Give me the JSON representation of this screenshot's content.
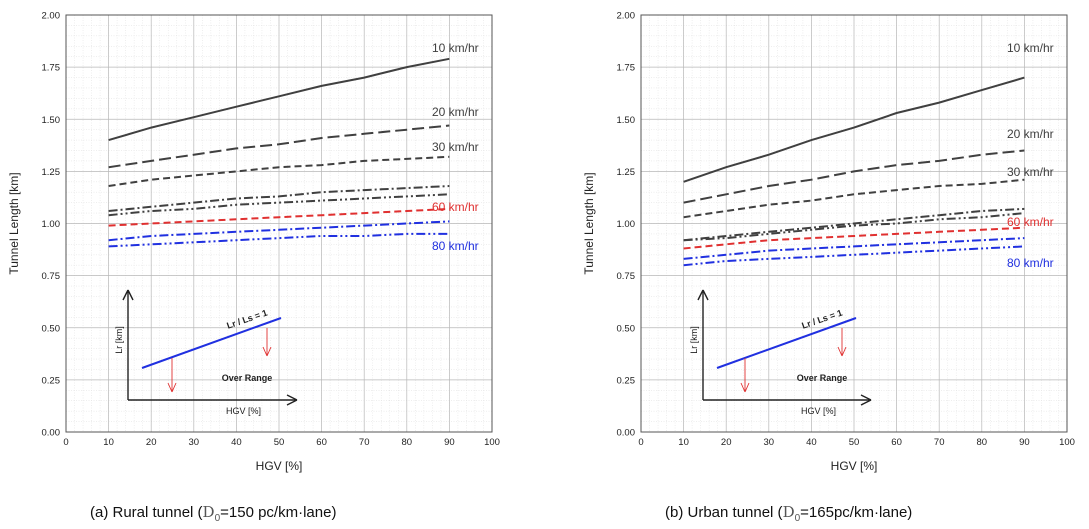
{
  "chart_data": [
    {
      "type": "line",
      "caption_prefix": "(a)  Rural  tunnel  (",
      "caption_symbol": "D",
      "caption_subscript": "0",
      "caption_suffix": "=150  pc/km·lane)",
      "xlabel": "HGV [%]",
      "ylabel": "Tunnel Length [km]",
      "xlim": [
        0,
        100
      ],
      "ylim": [
        0,
        2.0
      ],
      "x_ticks": [
        0,
        10,
        20,
        30,
        40,
        50,
        60,
        70,
        80,
        90,
        100
      ],
      "y_ticks": [
        0.0,
        0.25,
        0.5,
        0.75,
        1.0,
        1.25,
        1.5,
        1.75,
        2.0
      ],
      "grid": true,
      "x": [
        10,
        20,
        30,
        40,
        50,
        60,
        70,
        80,
        90
      ],
      "series": [
        {
          "name": "10 km/hr",
          "color": "#404040",
          "style": "solid",
          "values": [
            1.4,
            1.46,
            1.51,
            1.56,
            1.61,
            1.66,
            1.7,
            1.75,
            1.79
          ]
        },
        {
          "name": "20 km/hr",
          "color": "#404040",
          "style": "longdash",
          "values": [
            1.27,
            1.3,
            1.33,
            1.36,
            1.38,
            1.41,
            1.43,
            1.45,
            1.47
          ]
        },
        {
          "name": "30 km/hr",
          "color": "#404040",
          "style": "dash",
          "values": [
            1.18,
            1.21,
            1.23,
            1.25,
            1.27,
            1.28,
            1.3,
            1.31,
            1.32
          ]
        },
        {
          "color": "#404040",
          "style": "dashdot",
          "values": [
            1.06,
            1.08,
            1.1,
            1.12,
            1.13,
            1.15,
            1.16,
            1.17,
            1.18
          ]
        },
        {
          "color": "#404040",
          "style": "dashdotdot",
          "values": [
            1.04,
            1.06,
            1.07,
            1.09,
            1.1,
            1.11,
            1.12,
            1.13,
            1.14
          ]
        },
        {
          "name": "60 km/hr",
          "color": "#e03030",
          "style": "dash",
          "values": [
            0.99,
            1.0,
            1.01,
            1.02,
            1.03,
            1.04,
            1.05,
            1.06,
            1.07
          ]
        },
        {
          "color": "#2030e0",
          "style": "dashdot",
          "values": [
            0.92,
            0.94,
            0.95,
            0.96,
            0.97,
            0.98,
            0.99,
            1.0,
            1.01
          ]
        },
        {
          "name": "80 km/hr",
          "color": "#2030e0",
          "style": "dashdotdot",
          "values": [
            0.89,
            0.9,
            0.91,
            0.92,
            0.93,
            0.94,
            0.94,
            0.95,
            0.95
          ]
        }
      ],
      "inset": {
        "ylabel": "Lr [km]",
        "xlabel": "HGV [%]",
        "line_label": "Lr / Ls = 1",
        "over_label": "Over Range"
      }
    },
    {
      "type": "line",
      "caption_prefix": "(b)  Urban  tunnel  (",
      "caption_symbol": "D",
      "caption_subscript": "0",
      "caption_suffix": "=165pc/km·lane)",
      "xlabel": "HGV [%]",
      "ylabel": "Tunnel Length [km]",
      "xlim": [
        0,
        100
      ],
      "ylim": [
        0,
        2.0
      ],
      "x_ticks": [
        0,
        10,
        20,
        30,
        40,
        50,
        60,
        70,
        80,
        90,
        100
      ],
      "y_ticks": [
        0.0,
        0.25,
        0.5,
        0.75,
        1.0,
        1.25,
        1.5,
        1.75,
        2.0
      ],
      "grid": true,
      "x": [
        10,
        20,
        30,
        40,
        50,
        60,
        70,
        80,
        90
      ],
      "series": [
        {
          "name": "10 km/hr",
          "color": "#404040",
          "style": "solid",
          "values": [
            1.2,
            1.27,
            1.33,
            1.4,
            1.46,
            1.53,
            1.58,
            1.64,
            1.7
          ]
        },
        {
          "name": "20 km/hr",
          "color": "#404040",
          "style": "longdash",
          "values": [
            1.1,
            1.14,
            1.18,
            1.21,
            1.25,
            1.28,
            1.3,
            1.33,
            1.35
          ]
        },
        {
          "name": "30 km/hr",
          "color": "#404040",
          "style": "dash",
          "values": [
            1.03,
            1.06,
            1.09,
            1.11,
            1.14,
            1.16,
            1.18,
            1.19,
            1.21
          ]
        },
        {
          "color": "#404040",
          "style": "dashdot",
          "values": [
            0.92,
            0.94,
            0.96,
            0.98,
            1.0,
            1.02,
            1.04,
            1.06,
            1.07
          ]
        },
        {
          "color": "#404040",
          "style": "dashdotdot",
          "values": [
            0.92,
            0.93,
            0.95,
            0.97,
            0.99,
            1.0,
            1.02,
            1.03,
            1.05
          ]
        },
        {
          "name": "60 km/hr",
          "color": "#e03030",
          "style": "dash",
          "values": [
            0.88,
            0.9,
            0.92,
            0.93,
            0.94,
            0.95,
            0.96,
            0.97,
            0.98
          ]
        },
        {
          "color": "#2030e0",
          "style": "dashdot",
          "values": [
            0.83,
            0.85,
            0.87,
            0.88,
            0.89,
            0.9,
            0.91,
            0.92,
            0.93
          ]
        },
        {
          "name": "80 km/hr",
          "color": "#2030e0",
          "style": "dashdotdot",
          "values": [
            0.8,
            0.82,
            0.83,
            0.84,
            0.85,
            0.86,
            0.87,
            0.88,
            0.89
          ]
        }
      ],
      "inset": {
        "ylabel": "Lr [km]",
        "xlabel": "HGV [%]",
        "line_label": "Lr / Ls = 1",
        "over_label": "Over Range"
      }
    }
  ]
}
